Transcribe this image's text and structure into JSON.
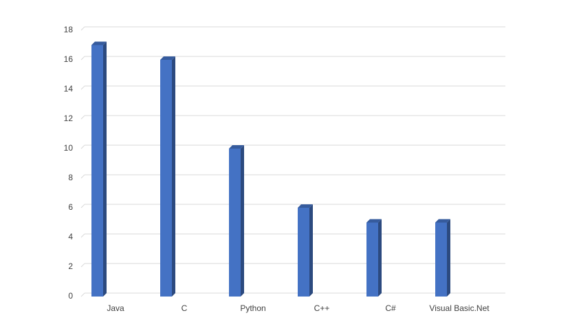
{
  "chart_data": {
    "type": "bar",
    "categories": [
      "Java",
      "C",
      "Python",
      "C++",
      "C#",
      "Visual Basic.Net"
    ],
    "values": [
      17,
      16,
      10,
      6,
      5,
      5
    ],
    "color": "#4472c4",
    "ylim": [
      0,
      18
    ],
    "yticks": [
      0,
      2,
      4,
      6,
      8,
      10,
      12,
      14,
      16,
      18
    ],
    "grid": true
  }
}
